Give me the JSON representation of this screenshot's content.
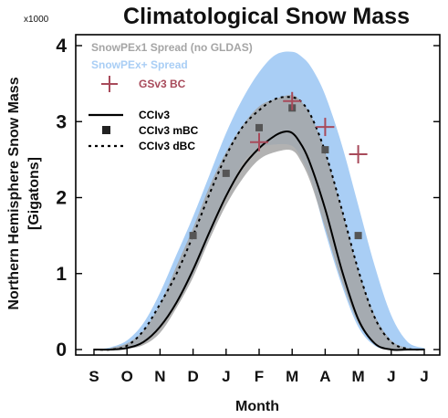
{
  "chart_data": {
    "type": "line",
    "title": "Climatological Snow Mass",
    "ylabel_line1": "Northern Hemisphere Snow Mass",
    "ylabel_line2": "[Gigatons]",
    "xlabel": "Month",
    "y_multiplier": "x1000",
    "ylim": [
      0,
      4.15
    ],
    "yticks": [
      0,
      1,
      2,
      3,
      4
    ],
    "xlim": [
      0,
      10.2
    ],
    "months": [
      "S",
      "O",
      "N",
      "D",
      "J",
      "F",
      "M",
      "A",
      "M",
      "J",
      "J"
    ],
    "legend": {
      "placement": "top-left",
      "items": {
        "spread1": "SnowPEx1 Spread (no GLDAS)",
        "spread_plus": "SnowPEx+ Spread",
        "gsv3": "GSv3 BC",
        "cciv3": "CCIv3",
        "cciv3_mbc": "CCIv3 mBC",
        "cciv3_dbc": "CCIv3 dBC"
      }
    },
    "colors": {
      "spread_plus": "#a9cef5",
      "spread1": "#a5a5a5",
      "gsv3": "#a84a5a",
      "cciv3": "#000000",
      "cciv3_mbc": "#555555",
      "cciv3_dbc": "#000000"
    },
    "spread_plus": {
      "x": [
        0.0,
        0.5,
        1.0,
        1.5,
        2.0,
        2.5,
        3.0,
        3.5,
        4.0,
        4.5,
        5.0,
        5.5,
        6.0,
        6.3,
        6.6,
        7.0,
        7.5,
        8.0,
        8.5,
        9.0,
        9.5,
        10.0
      ],
      "upper": [
        0.0,
        0.03,
        0.12,
        0.35,
        0.75,
        1.25,
        1.75,
        2.3,
        2.85,
        3.3,
        3.65,
        3.88,
        3.92,
        3.85,
        3.7,
        3.35,
        2.7,
        1.9,
        1.1,
        0.45,
        0.1,
        0.02
      ],
      "lower": [
        0.0,
        0.0,
        0.02,
        0.1,
        0.3,
        0.6,
        1.0,
        1.5,
        2.0,
        2.45,
        2.65,
        2.7,
        2.68,
        2.5,
        2.2,
        1.55,
        0.85,
        0.3,
        0.05,
        0.0,
        0.0,
        0.0
      ]
    },
    "spread1": {
      "x": [
        0.5,
        1.0,
        1.5,
        2.0,
        2.5,
        3.0,
        3.5,
        4.0,
        4.5,
        5.0,
        5.5,
        6.0,
        6.3,
        6.6,
        7.0,
        7.5,
        8.0,
        8.5,
        9.0,
        9.5,
        10.0
      ],
      "upper": [
        0.02,
        0.08,
        0.25,
        0.6,
        1.1,
        1.6,
        2.15,
        2.6,
        2.95,
        3.2,
        3.3,
        3.35,
        3.25,
        3.05,
        2.6,
        1.85,
        1.05,
        0.45,
        0.12,
        0.02,
        0.0
      ],
      "lower": [
        0.0,
        0.01,
        0.06,
        0.22,
        0.55,
        0.95,
        1.45,
        1.9,
        2.25,
        2.5,
        2.6,
        2.62,
        2.45,
        2.15,
        1.6,
        0.9,
        0.35,
        0.08,
        0.0,
        0.0,
        0.0
      ]
    },
    "cciv3": {
      "x": [
        0.0,
        0.5,
        1.0,
        1.5,
        2.0,
        2.5,
        3.0,
        3.5,
        4.0,
        4.5,
        5.0,
        5.5,
        5.8,
        6.0,
        6.2,
        6.5,
        7.0,
        7.5,
        8.0,
        8.5,
        9.0,
        9.5,
        10.0
      ],
      "y": [
        0.0,
        0.0,
        0.02,
        0.1,
        0.3,
        0.62,
        1.05,
        1.55,
        2.02,
        2.4,
        2.65,
        2.82,
        2.87,
        2.85,
        2.75,
        2.5,
        1.85,
        1.05,
        0.4,
        0.08,
        0.0,
        0.0,
        0.0
      ]
    },
    "cciv3_dbc": {
      "x": [
        0.0,
        0.5,
        1.0,
        1.5,
        2.0,
        2.5,
        3.0,
        3.5,
        4.0,
        4.5,
        5.0,
        5.5,
        6.0,
        6.3,
        6.6,
        7.0,
        7.5,
        8.0,
        8.5,
        9.0,
        9.5,
        10.0
      ],
      "y": [
        0.0,
        0.0,
        0.05,
        0.25,
        0.6,
        1.0,
        1.5,
        2.05,
        2.55,
        2.93,
        3.15,
        3.3,
        3.32,
        3.25,
        3.05,
        2.6,
        1.85,
        1.05,
        0.42,
        0.1,
        0.01,
        0.0
      ]
    },
    "cciv3_mbc_points": {
      "x": [
        3.0,
        4.0,
        5.0,
        6.0,
        7.0,
        8.0
      ],
      "y": [
        1.5,
        2.32,
        2.92,
        3.18,
        2.63,
        1.5
      ]
    },
    "gsv3_points": {
      "x": [
        5.0,
        6.0,
        7.0,
        8.0
      ],
      "y": [
        2.73,
        3.27,
        2.93,
        2.57
      ]
    }
  }
}
